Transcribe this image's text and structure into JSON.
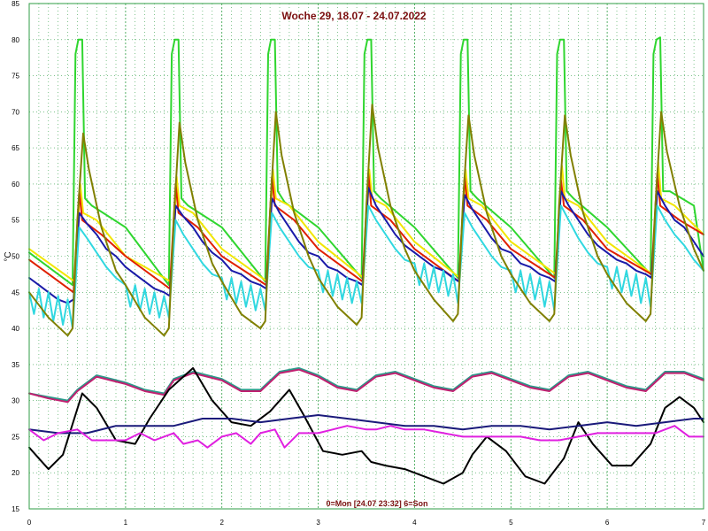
{
  "chart_data": {
    "type": "line",
    "title": "Woche 29, 18.07 - 24.07.2022",
    "footer": "0=Mon [24.07 23:32] 6=Son",
    "ylabel": "°C",
    "xlim": [
      0,
      7
    ],
    "ylim": [
      15,
      85
    ],
    "xticks": [
      0,
      1,
      2,
      3,
      4,
      5,
      6,
      7
    ],
    "yticks": [
      15,
      20,
      25,
      30,
      35,
      40,
      45,
      50,
      55,
      60,
      65,
      70,
      75,
      80,
      85
    ],
    "grid": true,
    "colors": {
      "grid": "#2f9e44",
      "background": "#ffffff",
      "text": "#7a0f0f"
    },
    "series": [
      {
        "color": "#2fd62f",
        "x": [
          0,
          0.45,
          0.48,
          0.51,
          0.55,
          0.58,
          0.65,
          1.0,
          1.45,
          1.48,
          1.51,
          1.55,
          1.58,
          1.65,
          2.0,
          2.45,
          2.48,
          2.51,
          2.55,
          2.58,
          2.65,
          3.0,
          3.45,
          3.48,
          3.51,
          3.55,
          3.58,
          3.65,
          4.0,
          4.45,
          4.48,
          4.51,
          4.55,
          4.58,
          4.65,
          5.0,
          5.45,
          5.48,
          5.51,
          5.55,
          5.58,
          5.65,
          6.0,
          6.45,
          6.48,
          6.51,
          6.55,
          6.58,
          6.65,
          6.9,
          7.0
        ],
        "values": [
          50.5,
          46,
          78,
          80,
          80,
          58,
          57,
          54,
          46,
          78,
          80,
          80,
          58,
          57,
          54,
          46.5,
          78,
          80,
          80,
          59,
          57.5,
          54,
          47,
          78,
          80,
          80,
          59,
          58,
          54,
          47,
          78,
          80,
          80,
          59,
          58,
          54,
          47,
          78,
          80,
          80,
          59,
          58,
          54,
          47.5,
          78,
          80,
          80.3,
          59,
          59,
          57,
          48
        ]
      },
      {
        "color": "#f2e600",
        "x": [
          0,
          0.47,
          0.53,
          0.56,
          0.7,
          1.0,
          1.47,
          1.53,
          1.56,
          1.7,
          2.0,
          2.47,
          2.53,
          2.56,
          2.7,
          3.0,
          3.47,
          3.53,
          3.56,
          3.7,
          4.0,
          4.47,
          4.53,
          4.56,
          4.7,
          5.0,
          5.47,
          5.53,
          5.56,
          5.7,
          6.0,
          6.47,
          6.53,
          6.56,
          6.7,
          7.0
        ],
        "values": [
          51,
          46.5,
          60,
          56,
          55,
          50,
          46.5,
          61,
          57,
          56,
          51,
          46.5,
          62,
          58,
          57,
          52,
          47,
          62,
          58,
          57,
          52,
          47,
          62,
          58,
          57,
          52,
          47.5,
          62.5,
          58,
          57,
          52,
          47.5,
          63,
          58,
          57,
          53
        ]
      },
      {
        "color": "#e02000",
        "x": [
          0,
          0.46,
          0.52,
          0.55,
          0.75,
          1.0,
          1.46,
          1.52,
          1.55,
          1.75,
          2.0,
          2.46,
          2.52,
          2.55,
          2.75,
          3.0,
          3.46,
          3.52,
          3.55,
          3.75,
          4.0,
          4.46,
          4.52,
          4.55,
          4.75,
          5.0,
          5.46,
          5.52,
          5.55,
          5.75,
          6.0,
          6.46,
          6.52,
          6.55,
          6.75,
          7.0
        ],
        "values": [
          49.5,
          45,
          59,
          55,
          53,
          50,
          45.5,
          60,
          56,
          54,
          50,
          46,
          61,
          57,
          55,
          51,
          46.5,
          61.5,
          57,
          55,
          51,
          46.5,
          61,
          57,
          55,
          51,
          47,
          60.5,
          57,
          55,
          51,
          47.5,
          61.5,
          57,
          55,
          53
        ]
      },
      {
        "color": "#1a1aa8",
        "x": [
          0,
          0.1,
          0.2,
          0.3,
          0.4,
          0.46,
          0.52,
          0.6,
          0.7,
          0.8,
          0.9,
          1.0,
          1.1,
          1.2,
          1.3,
          1.4,
          1.46,
          1.52,
          1.6,
          1.7,
          1.8,
          1.9,
          2.0,
          2.1,
          2.2,
          2.3,
          2.4,
          2.46,
          2.52,
          2.6,
          2.7,
          2.8,
          2.9,
          3.0,
          3.1,
          3.2,
          3.3,
          3.4,
          3.46,
          3.52,
          3.6,
          3.7,
          3.8,
          3.9,
          4.0,
          4.1,
          4.2,
          4.3,
          4.4,
          4.46,
          4.52,
          4.6,
          4.7,
          4.8,
          4.9,
          5.0,
          5.1,
          5.2,
          5.3,
          5.4,
          5.46,
          5.52,
          5.6,
          5.7,
          5.8,
          5.9,
          6.0,
          6.1,
          6.2,
          6.3,
          6.4,
          6.46,
          6.52,
          6.6,
          6.7,
          6.8,
          6.9,
          7.0
        ],
        "values": [
          47,
          46,
          45,
          44,
          43.5,
          44,
          56,
          54.5,
          53,
          51,
          50,
          48.5,
          47.5,
          46.5,
          45.5,
          45,
          44.5,
          57,
          55.5,
          54,
          52,
          50.5,
          49.5,
          48,
          47.5,
          46.5,
          46,
          45.5,
          58,
          56,
          54,
          52,
          50.5,
          50,
          48.5,
          48,
          47,
          46.5,
          46,
          59.5,
          57,
          55,
          53,
          51.5,
          50.5,
          49.5,
          48.5,
          48,
          47,
          46.5,
          58.5,
          56.5,
          54.5,
          52.5,
          51,
          50.5,
          49,
          48.5,
          47.5,
          47,
          46.5,
          59,
          57,
          55,
          53,
          51.5,
          50.5,
          49.5,
          49,
          48,
          47.5,
          47,
          59,
          57,
          55,
          54,
          52,
          50
        ]
      },
      {
        "color": "#30d8e0",
        "x": [
          0,
          0.05,
          0.1,
          0.15,
          0.2,
          0.25,
          0.3,
          0.35,
          0.4,
          0.45,
          0.52,
          0.6,
          0.7,
          0.8,
          0.9,
          1.0,
          1.05,
          1.1,
          1.15,
          1.2,
          1.25,
          1.3,
          1.35,
          1.4,
          1.45,
          1.52,
          1.6,
          1.7,
          1.8,
          1.9,
          2.0,
          2.05,
          2.1,
          2.15,
          2.2,
          2.25,
          2.3,
          2.35,
          2.4,
          2.45,
          2.52,
          2.6,
          2.7,
          2.8,
          2.9,
          3.0,
          3.05,
          3.1,
          3.15,
          3.2,
          3.25,
          3.3,
          3.35,
          3.4,
          3.45,
          3.52,
          3.6,
          3.7,
          3.8,
          3.9,
          4.0,
          4.05,
          4.1,
          4.15,
          4.2,
          4.25,
          4.3,
          4.35,
          4.4,
          4.45,
          4.52,
          4.6,
          4.7,
          4.8,
          4.9,
          5.0,
          5.05,
          5.1,
          5.15,
          5.2,
          5.25,
          5.3,
          5.35,
          5.4,
          5.45,
          5.52,
          5.6,
          5.7,
          5.8,
          5.9,
          6.0,
          6.05,
          6.1,
          6.15,
          6.2,
          6.25,
          6.3,
          6.35,
          6.4,
          6.45,
          6.52,
          6.6,
          6.7,
          6.8,
          6.9,
          7.0
        ],
        "values": [
          45,
          42,
          45.5,
          41.5,
          45,
          41,
          44.5,
          40.5,
          44,
          40,
          54,
          52.5,
          50.5,
          48.5,
          47,
          46,
          43,
          46,
          42.5,
          45.5,
          42,
          45,
          41.5,
          44.5,
          41.5,
          55,
          53,
          51,
          49,
          47.5,
          47,
          44,
          47,
          43.5,
          46.5,
          43,
          46,
          42.5,
          45.5,
          42.5,
          56,
          54,
          52,
          50,
          48.5,
          48,
          45,
          48,
          44.5,
          47.5,
          44,
          47,
          43.5,
          46.5,
          43.5,
          57,
          55,
          53,
          51,
          49.5,
          49,
          46,
          49,
          45.5,
          48.5,
          45,
          48,
          44.5,
          47.5,
          43.5,
          56,
          54,
          52,
          50,
          48.5,
          48,
          45,
          48,
          44.5,
          47.5,
          44,
          47,
          43,
          46.5,
          42.5,
          57,
          55,
          52.5,
          50.5,
          49,
          48.5,
          45.5,
          48.5,
          45,
          48,
          44.5,
          47.5,
          43.5,
          47,
          43,
          57,
          55,
          53,
          51.5,
          49.5,
          48
        ]
      },
      {
        "color": "#808000",
        "x": [
          0,
          0.2,
          0.4,
          0.45,
          0.5,
          0.56,
          0.62,
          0.75,
          0.9,
          1.0,
          1.2,
          1.4,
          1.45,
          1.5,
          1.56,
          1.62,
          1.75,
          1.9,
          2.0,
          2.2,
          2.4,
          2.45,
          2.5,
          2.56,
          2.62,
          2.75,
          2.9,
          3.0,
          3.2,
          3.4,
          3.45,
          3.5,
          3.56,
          3.62,
          3.75,
          3.9,
          4.0,
          4.2,
          4.4,
          4.45,
          4.5,
          4.56,
          4.62,
          4.75,
          4.9,
          5.0,
          5.2,
          5.4,
          5.45,
          5.5,
          5.56,
          5.62,
          5.75,
          5.9,
          6.0,
          6.2,
          6.4,
          6.45,
          6.5,
          6.56,
          6.62,
          6.75,
          6.9,
          7.0
        ],
        "values": [
          45,
          41.5,
          39,
          40,
          55,
          67,
          62,
          54,
          48,
          46,
          41.5,
          39,
          40,
          55,
          68.5,
          63,
          55,
          49,
          46.5,
          42,
          40,
          41,
          56,
          70,
          64,
          56,
          50,
          47,
          43,
          40.5,
          41.5,
          57,
          71,
          65,
          57,
          51,
          48,
          44,
          41,
          42,
          57,
          69.5,
          64,
          56,
          50,
          47.5,
          43.5,
          41,
          42,
          57,
          69.5,
          64,
          56,
          50,
          47.5,
          43.5,
          41,
          42,
          57,
          70,
          64.5,
          57,
          51,
          48
        ]
      },
      {
        "color": "#2a9a8a",
        "x": [
          0,
          0.2,
          0.4,
          0.5,
          0.7,
          1.0,
          1.2,
          1.4,
          1.5,
          1.7,
          2.0,
          2.2,
          2.4,
          2.6,
          2.8,
          3.0,
          3.2,
          3.4,
          3.6,
          3.8,
          4.0,
          4.2,
          4.4,
          4.6,
          4.8,
          5.0,
          5.2,
          5.4,
          5.6,
          5.8,
          6.0,
          6.2,
          6.4,
          6.6,
          6.8,
          7.0
        ],
        "values": [
          31,
          30.5,
          30,
          31.5,
          33.5,
          32.5,
          31.5,
          31,
          33,
          34,
          33,
          31.5,
          31.5,
          34,
          34.5,
          33.5,
          32,
          31.5,
          33.5,
          34,
          33,
          32,
          31.5,
          33.5,
          34,
          33,
          32,
          31.5,
          33.5,
          34,
          33,
          32,
          31.5,
          34,
          34,
          33
        ]
      },
      {
        "color": "#c02070",
        "x": [
          0,
          0.2,
          0.4,
          0.5,
          0.7,
          1.0,
          1.2,
          1.4,
          1.5,
          1.7,
          2.0,
          2.2,
          2.4,
          2.6,
          2.8,
          3.0,
          3.2,
          3.4,
          3.6,
          3.8,
          4.0,
          4.2,
          4.4,
          4.6,
          4.8,
          5.0,
          5.2,
          5.4,
          5.6,
          5.8,
          6.0,
          6.2,
          6.4,
          6.6,
          6.8,
          7.0
        ],
        "values": [
          31,
          30.3,
          29.8,
          31.3,
          33.3,
          32.3,
          31.3,
          30.8,
          32.8,
          33.8,
          32.8,
          31.3,
          31.3,
          33.8,
          34.3,
          33.3,
          31.8,
          31.3,
          33.3,
          33.8,
          32.8,
          31.8,
          31.3,
          33.3,
          33.8,
          32.8,
          31.8,
          31.3,
          33.3,
          33.8,
          32.8,
          31.8,
          31.3,
          33.8,
          33.8,
          32.8
        ]
      },
      {
        "color": "#000000",
        "x": [
          0,
          0.1,
          0.2,
          0.35,
          0.55,
          0.7,
          0.9,
          1.1,
          1.25,
          1.45,
          1.7,
          1.9,
          2.1,
          2.3,
          2.5,
          2.7,
          2.85,
          3.05,
          3.25,
          3.45,
          3.55,
          3.7,
          3.9,
          4.1,
          4.3,
          4.5,
          4.6,
          4.75,
          4.95,
          5.15,
          5.35,
          5.55,
          5.7,
          5.85,
          6.05,
          6.25,
          6.45,
          6.6,
          6.75,
          6.9,
          7.0
        ],
        "values": [
          23.5,
          22,
          20.5,
          22.5,
          31,
          29,
          24.5,
          24,
          27.5,
          31.5,
          34.5,
          30,
          27,
          26.5,
          28.5,
          31.5,
          28,
          23,
          22.5,
          23,
          21.5,
          21,
          20.5,
          19.5,
          18.5,
          20,
          22.5,
          25,
          23,
          19.5,
          18.5,
          22,
          27,
          24,
          21,
          21,
          24,
          29,
          30.5,
          29,
          27
        ]
      },
      {
        "color": "#1a1a7a",
        "x": [
          0,
          0.3,
          0.6,
          0.9,
          1.2,
          1.5,
          1.8,
          2.1,
          2.4,
          2.7,
          3.0,
          3.3,
          3.6,
          3.9,
          4.2,
          4.5,
          4.8,
          5.1,
          5.4,
          5.7,
          6.0,
          6.3,
          6.6,
          6.9,
          7.0
        ],
        "values": [
          26,
          25.5,
          25.5,
          26.5,
          26.5,
          26.5,
          27.5,
          27.5,
          27,
          27.5,
          28,
          27.5,
          27,
          26.5,
          26.5,
          26,
          26.5,
          26.5,
          26,
          26.5,
          27,
          26.5,
          27,
          27.5,
          27.5
        ]
      },
      {
        "color": "#e020e0",
        "x": [
          0,
          0.15,
          0.3,
          0.5,
          0.65,
          0.85,
          1.0,
          1.15,
          1.3,
          1.5,
          1.6,
          1.75,
          1.85,
          2.0,
          2.15,
          2.3,
          2.4,
          2.55,
          2.65,
          2.8,
          3.0,
          3.15,
          3.3,
          3.5,
          3.6,
          3.75,
          3.9,
          4.1,
          4.3,
          4.5,
          4.7,
          4.9,
          5.1,
          5.3,
          5.5,
          5.7,
          5.9,
          6.1,
          6.3,
          6.5,
          6.7,
          6.85,
          7.0
        ],
        "values": [
          26,
          24.5,
          25.5,
          26,
          24.5,
          24.5,
          24.5,
          25.5,
          24.5,
          25.5,
          24,
          24.5,
          23.5,
          25,
          25.5,
          24,
          25.5,
          26,
          23.5,
          25.5,
          25.5,
          26,
          26.5,
          26,
          26,
          26.5,
          26,
          26,
          25.5,
          25,
          25,
          25,
          25,
          24.5,
          24.5,
          25,
          25.5,
          25.5,
          25.5,
          25.5,
          26.5,
          25,
          25
        ]
      }
    ]
  }
}
